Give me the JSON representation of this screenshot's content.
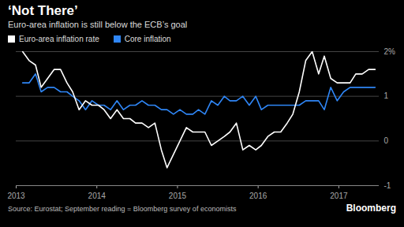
{
  "chart_data": {
    "type": "line",
    "title": "‘Not There’",
    "subtitle": "Euro-area inflation is still below the ECB’s goal",
    "source": "Source: Eurostat; September reading = Bloomberg survey of economists",
    "credit": "Bloomberg",
    "x": [
      2013.08,
      2013.16,
      2013.24,
      2013.31,
      2013.39,
      2013.47,
      2013.55,
      2013.63,
      2013.7,
      2013.78,
      2013.86,
      2013.94,
      2014.02,
      2014.09,
      2014.17,
      2014.25,
      2014.33,
      2014.41,
      2014.48,
      2014.56,
      2014.64,
      2014.72,
      2014.8,
      2014.87,
      2014.95,
      2015.03,
      2015.11,
      2015.19,
      2015.26,
      2015.34,
      2015.42,
      2015.5,
      2015.58,
      2015.65,
      2015.73,
      2015.81,
      2015.89,
      2015.97,
      2016.04,
      2016.12,
      2016.2,
      2016.28,
      2016.36,
      2016.43,
      2016.51,
      2016.59,
      2016.67,
      2016.75,
      2016.82,
      2016.9,
      2016.98,
      2017.06,
      2017.14,
      2017.21,
      2017.29,
      2017.37,
      2017.45
    ],
    "series": [
      {
        "name": "Euro-area inflation rate",
        "color": "#ffffff",
        "values": [
          2.0,
          1.8,
          1.7,
          1.2,
          1.4,
          1.6,
          1.6,
          1.3,
          1.1,
          0.7,
          0.9,
          0.8,
          0.8,
          0.7,
          0.5,
          0.7,
          0.5,
          0.5,
          0.4,
          0.4,
          0.3,
          0.4,
          -0.2,
          -0.6,
          -0.3,
          0.0,
          0.3,
          0.2,
          0.2,
          0.2,
          -0.1,
          0.0,
          0.1,
          0.2,
          0.4,
          -0.2,
          -0.1,
          -0.2,
          -0.1,
          0.1,
          0.2,
          0.2,
          0.4,
          0.6,
          1.1,
          1.8,
          2.0,
          1.5,
          1.9,
          1.4,
          1.3,
          1.3,
          1.3,
          1.5,
          1.5,
          1.6,
          1.6
        ]
      },
      {
        "name": "Core inflation",
        "color": "#2f86f6",
        "values": [
          1.3,
          1.3,
          1.5,
          1.1,
          1.2,
          1.2,
          1.1,
          1.1,
          1.0,
          0.9,
          0.7,
          0.9,
          0.8,
          0.8,
          0.7,
          0.9,
          0.7,
          0.8,
          0.8,
          0.9,
          0.8,
          0.8,
          0.7,
          0.7,
          0.6,
          0.7,
          0.6,
          0.6,
          0.7,
          0.6,
          0.9,
          0.8,
          1.0,
          0.9,
          0.9,
          1.0,
          0.8,
          1.0,
          0.7,
          0.8,
          0.8,
          0.8,
          0.8,
          0.8,
          0.8,
          0.9,
          0.9,
          0.9,
          0.7,
          1.2,
          0.9,
          1.1,
          1.2,
          1.2,
          1.2,
          1.2,
          1.2
        ]
      }
    ],
    "xlim": [
      2013,
      2017.5
    ],
    "xticks": [
      2013,
      2014,
      2015,
      2016,
      2017
    ],
    "ylim": [
      -1,
      2
    ],
    "yticks": [
      {
        "value": 2,
        "label": "2%"
      },
      1,
      0,
      -1
    ],
    "grid": true
  }
}
